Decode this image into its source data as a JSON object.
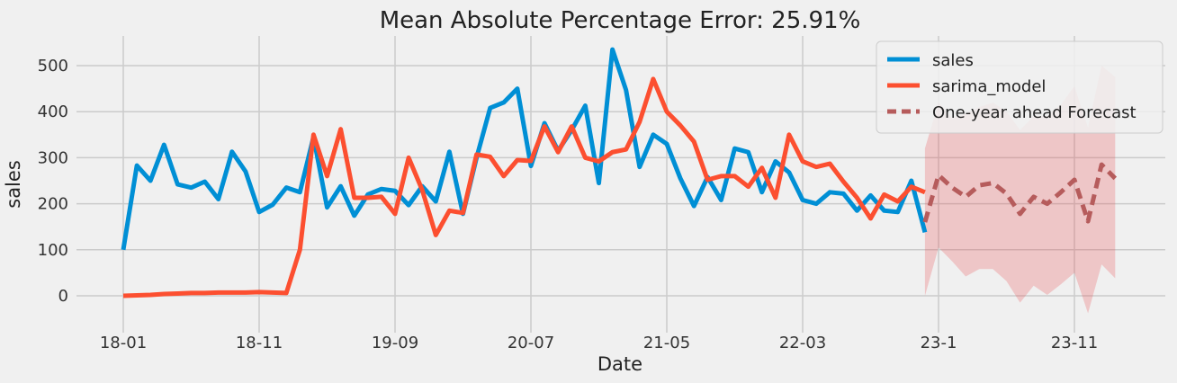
{
  "chart_data": {
    "type": "line",
    "title": "Mean Absolute Percentage Error: 25.91%",
    "xlabel": "Date",
    "ylabel": "sales",
    "ylim": [
      -50,
      560
    ],
    "grid": true,
    "legend_position": "top-right",
    "x_ticks": [
      "18-01",
      "18-11",
      "19-09",
      "20-07",
      "21-05",
      "22-03",
      "23-1",
      "23-11"
    ],
    "y_ticks": [
      0,
      100,
      200,
      300,
      400,
      500
    ],
    "series": [
      {
        "name": "sales",
        "color": "#008fd5",
        "x": [
          "2018-01",
          "2018-02",
          "2018-03",
          "2018-04",
          "2018-05",
          "2018-06",
          "2018-07",
          "2018-08",
          "2018-09",
          "2018-10",
          "2018-11",
          "2018-12",
          "2019-01",
          "2019-02",
          "2019-03",
          "2019-04",
          "2019-05",
          "2019-06",
          "2019-07",
          "2019-08",
          "2019-09",
          "2019-10",
          "2019-11",
          "2019-12",
          "2020-01",
          "2020-02",
          "2020-03",
          "2020-04",
          "2020-05",
          "2020-06",
          "2020-07",
          "2020-08",
          "2020-09",
          "2020-10",
          "2020-11",
          "2020-12",
          "2021-01",
          "2021-02",
          "2021-03",
          "2021-04",
          "2021-05",
          "2021-06",
          "2021-07",
          "2021-08",
          "2021-09",
          "2021-10",
          "2021-11",
          "2021-12",
          "2022-01",
          "2022-02",
          "2022-03",
          "2022-04",
          "2022-05",
          "2022-06",
          "2022-07",
          "2022-08",
          "2022-09",
          "2022-10",
          "2022-11",
          "2022-12"
        ],
        "values": [
          100,
          283,
          250,
          328,
          242,
          235,
          248,
          210,
          313,
          270,
          182,
          198,
          235,
          225,
          345,
          192,
          238,
          174,
          220,
          232,
          228,
          197,
          238,
          205,
          313,
          178,
          300,
          408,
          420,
          450,
          282,
          375,
          315,
          360,
          413,
          245,
          535,
          447,
          280,
          350,
          330,
          255,
          195,
          258,
          208,
          320,
          312,
          225,
          292,
          268,
          208,
          200,
          225,
          222,
          185,
          218,
          185,
          182,
          250,
          138
        ]
      },
      {
        "name": "sarima_model",
        "color": "#fc4f30",
        "x": [
          "2018-01",
          "2018-02",
          "2018-03",
          "2018-04",
          "2018-05",
          "2018-06",
          "2018-07",
          "2018-08",
          "2018-09",
          "2018-10",
          "2018-11",
          "2018-12",
          "2019-01",
          "2019-02",
          "2019-03",
          "2019-04",
          "2019-05",
          "2019-06",
          "2019-07",
          "2019-08",
          "2019-09",
          "2019-10",
          "2019-11",
          "2019-12",
          "2020-01",
          "2020-02",
          "2020-03",
          "2020-04",
          "2020-05",
          "2020-06",
          "2020-07",
          "2020-08",
          "2020-09",
          "2020-10",
          "2020-11",
          "2020-12",
          "2021-01",
          "2021-02",
          "2021-03",
          "2021-04",
          "2021-05",
          "2021-06",
          "2021-07",
          "2021-08",
          "2021-09",
          "2021-10",
          "2021-11",
          "2021-12",
          "2022-01",
          "2022-02",
          "2022-03",
          "2022-04",
          "2022-05",
          "2022-06",
          "2022-07",
          "2022-08",
          "2022-09",
          "2022-10",
          "2022-11",
          "2022-12"
        ],
        "values": [
          0,
          1,
          2,
          4,
          5,
          6,
          6,
          7,
          7,
          7,
          8,
          7,
          6,
          100,
          350,
          260,
          362,
          213,
          213,
          215,
          178,
          300,
          230,
          132,
          185,
          180,
          307,
          302,
          260,
          295,
          293,
          368,
          312,
          368,
          300,
          292,
          312,
          318,
          378,
          471,
          400,
          370,
          335,
          252,
          260,
          260,
          237,
          278,
          213,
          350,
          292,
          280,
          287,
          248,
          213,
          168,
          220,
          205,
          237,
          225
        ]
      },
      {
        "name": "One-year ahead Forecast",
        "color": "#b65c5c",
        "style": "dashed",
        "x": [
          "2022-12",
          "2023-01",
          "2023-02",
          "2023-03",
          "2023-04",
          "2023-05",
          "2023-06",
          "2023-07",
          "2023-08",
          "2023-09",
          "2023-10",
          "2023-11",
          "2023-12",
          "2024-01",
          "2024-02"
        ],
        "values": [
          160,
          262,
          235,
          215,
          240,
          245,
          222,
          178,
          215,
          200,
          225,
          252,
          162,
          285,
          255
        ],
        "lower": [
          0,
          105,
          75,
          42,
          58,
          58,
          32,
          -15,
          22,
          2,
          25,
          50,
          -38,
          68,
          38
        ],
        "upper": [
          320,
          420,
          385,
          395,
          410,
          420,
          400,
          360,
          390,
          390,
          415,
          455,
          365,
          500,
          475
        ]
      }
    ]
  }
}
